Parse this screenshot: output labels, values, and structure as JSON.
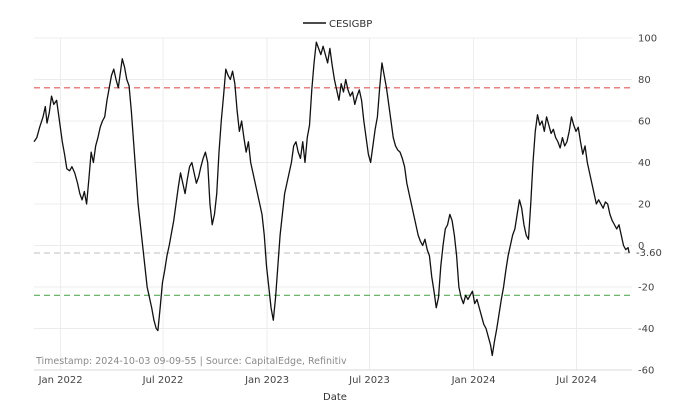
{
  "chart_data": {
    "type": "line",
    "legend": {
      "label": "CESIGBP",
      "position": "top-center"
    },
    "xlabel": "Date",
    "ylabel": "",
    "ylim": [
      -60,
      100
    ],
    "y_ticks": [
      100,
      80,
      60,
      40,
      20,
      0,
      -20,
      -40,
      -60
    ],
    "x_range": [
      "2021-11-15",
      "2024-10-07"
    ],
    "x_ticks": [
      {
        "date": "2022-01-01",
        "label": "Jan 2022"
      },
      {
        "date": "2022-07-01",
        "label": "Jul 2022"
      },
      {
        "date": "2023-01-01",
        "label": "Jan 2023"
      },
      {
        "date": "2023-07-01",
        "label": "Jul 2023"
      },
      {
        "date": "2024-01-01",
        "label": "Jan 2024"
      },
      {
        "date": "2024-07-01",
        "label": "Jul 2024"
      }
    ],
    "grid": true,
    "reference_lines": [
      {
        "value": 76,
        "color": "#e05a5a",
        "style": "dashed"
      },
      {
        "value": -24,
        "color": "#5aab5a",
        "style": "dashed"
      },
      {
        "value": -3.6,
        "color": "#cccccc",
        "style": "dashed"
      }
    ],
    "last_value_label": "-3.60",
    "series": [
      {
        "name": "CESIGBP",
        "color": "#111111",
        "points": [
          [
            "2021-11-15",
            50
          ],
          [
            "2021-11-20",
            52
          ],
          [
            "2021-11-25",
            57
          ],
          [
            "2021-12-01",
            62
          ],
          [
            "2021-12-05",
            67
          ],
          [
            "2021-12-08",
            59
          ],
          [
            "2021-12-12",
            64
          ],
          [
            "2021-12-16",
            72
          ],
          [
            "2021-12-20",
            68
          ],
          [
            "2021-12-25",
            70
          ],
          [
            "2021-12-30",
            60
          ],
          [
            "2022-01-04",
            50
          ],
          [
            "2022-01-08",
            44
          ],
          [
            "2022-01-12",
            37
          ],
          [
            "2022-01-17",
            36
          ],
          [
            "2022-01-21",
            38
          ],
          [
            "2022-01-26",
            35
          ],
          [
            "2022-01-31",
            30
          ],
          [
            "2022-02-04",
            25
          ],
          [
            "2022-02-08",
            22
          ],
          [
            "2022-02-12",
            26
          ],
          [
            "2022-02-16",
            20
          ],
          [
            "2022-02-20",
            32
          ],
          [
            "2022-02-24",
            45
          ],
          [
            "2022-02-28",
            40
          ],
          [
            "2022-03-04",
            48
          ],
          [
            "2022-03-08",
            52
          ],
          [
            "2022-03-12",
            57
          ],
          [
            "2022-03-16",
            60
          ],
          [
            "2022-03-20",
            62
          ],
          [
            "2022-03-24",
            70
          ],
          [
            "2022-03-28",
            76
          ],
          [
            "2022-04-01",
            82
          ],
          [
            "2022-04-05",
            85
          ],
          [
            "2022-04-09",
            80
          ],
          [
            "2022-04-13",
            76
          ],
          [
            "2022-04-17",
            84
          ],
          [
            "2022-04-20",
            90
          ],
          [
            "2022-04-24",
            86
          ],
          [
            "2022-04-28",
            80
          ],
          [
            "2022-05-02",
            77
          ],
          [
            "2022-05-06",
            65
          ],
          [
            "2022-05-10",
            50
          ],
          [
            "2022-05-14",
            35
          ],
          [
            "2022-05-18",
            20
          ],
          [
            "2022-05-22",
            10
          ],
          [
            "2022-05-26",
            0
          ],
          [
            "2022-05-30",
            -10
          ],
          [
            "2022-06-03",
            -20
          ],
          [
            "2022-06-07",
            -25
          ],
          [
            "2022-06-11",
            -30
          ],
          [
            "2022-06-15",
            -36
          ],
          [
            "2022-06-19",
            -40
          ],
          [
            "2022-06-22",
            -41
          ],
          [
            "2022-06-26",
            -30
          ],
          [
            "2022-06-30",
            -18
          ],
          [
            "2022-07-04",
            -12
          ],
          [
            "2022-07-08",
            -5
          ],
          [
            "2022-07-12",
            0
          ],
          [
            "2022-07-16",
            6
          ],
          [
            "2022-07-20",
            12
          ],
          [
            "2022-07-24",
            20
          ],
          [
            "2022-07-28",
            28
          ],
          [
            "2022-08-01",
            35
          ],
          [
            "2022-08-05",
            30
          ],
          [
            "2022-08-09",
            25
          ],
          [
            "2022-08-13",
            32
          ],
          [
            "2022-08-17",
            38
          ],
          [
            "2022-08-21",
            40
          ],
          [
            "2022-08-25",
            35
          ],
          [
            "2022-08-29",
            30
          ],
          [
            "2022-09-02",
            33
          ],
          [
            "2022-09-06",
            38
          ],
          [
            "2022-09-10",
            42
          ],
          [
            "2022-09-14",
            45
          ],
          [
            "2022-09-18",
            40
          ],
          [
            "2022-09-22",
            20
          ],
          [
            "2022-09-26",
            10
          ],
          [
            "2022-09-30",
            15
          ],
          [
            "2022-10-04",
            25
          ],
          [
            "2022-10-08",
            45
          ],
          [
            "2022-10-12",
            60
          ],
          [
            "2022-10-16",
            72
          ],
          [
            "2022-10-20",
            85
          ],
          [
            "2022-10-24",
            82
          ],
          [
            "2022-10-28",
            80
          ],
          [
            "2022-11-01",
            84
          ],
          [
            "2022-11-05",
            78
          ],
          [
            "2022-11-09",
            65
          ],
          [
            "2022-11-13",
            55
          ],
          [
            "2022-11-17",
            60
          ],
          [
            "2022-11-21",
            52
          ],
          [
            "2022-11-25",
            45
          ],
          [
            "2022-11-29",
            50
          ],
          [
            "2022-12-03",
            40
          ],
          [
            "2022-12-07",
            35
          ],
          [
            "2022-12-11",
            30
          ],
          [
            "2022-12-15",
            25
          ],
          [
            "2022-12-19",
            20
          ],
          [
            "2022-12-23",
            15
          ],
          [
            "2022-12-27",
            5
          ],
          [
            "2022-12-31",
            -10
          ],
          [
            "2023-01-04",
            -20
          ],
          [
            "2023-01-08",
            -30
          ],
          [
            "2023-01-12",
            -36
          ],
          [
            "2023-01-16",
            -25
          ],
          [
            "2023-01-20",
            -10
          ],
          [
            "2023-01-24",
            5
          ],
          [
            "2023-01-28",
            15
          ],
          [
            "2023-02-01",
            25
          ],
          [
            "2023-02-05",
            30
          ],
          [
            "2023-02-09",
            35
          ],
          [
            "2023-02-13",
            40
          ],
          [
            "2023-02-17",
            48
          ],
          [
            "2023-02-21",
            50
          ],
          [
            "2023-02-25",
            45
          ],
          [
            "2023-03-01",
            42
          ],
          [
            "2023-03-05",
            50
          ],
          [
            "2023-03-09",
            40
          ],
          [
            "2023-03-13",
            52
          ],
          [
            "2023-03-17",
            58
          ],
          [
            "2023-03-21",
            75
          ],
          [
            "2023-03-25",
            88
          ],
          [
            "2023-03-29",
            98
          ],
          [
            "2023-04-02",
            95
          ],
          [
            "2023-04-06",
            92
          ],
          [
            "2023-04-10",
            96
          ],
          [
            "2023-04-14",
            92
          ],
          [
            "2023-04-18",
            88
          ],
          [
            "2023-04-22",
            95
          ],
          [
            "2023-04-26",
            87
          ],
          [
            "2023-04-30",
            80
          ],
          [
            "2023-05-04",
            75
          ],
          [
            "2023-05-08",
            70
          ],
          [
            "2023-05-12",
            78
          ],
          [
            "2023-05-16",
            74
          ],
          [
            "2023-05-20",
            80
          ],
          [
            "2023-05-24",
            75
          ],
          [
            "2023-05-28",
            72
          ],
          [
            "2023-06-01",
            74
          ],
          [
            "2023-06-05",
            68
          ],
          [
            "2023-06-09",
            72
          ],
          [
            "2023-06-13",
            75
          ],
          [
            "2023-06-17",
            70
          ],
          [
            "2023-06-21",
            60
          ],
          [
            "2023-06-25",
            52
          ],
          [
            "2023-06-29",
            44
          ],
          [
            "2023-07-03",
            40
          ],
          [
            "2023-07-07",
            48
          ],
          [
            "2023-07-11",
            56
          ],
          [
            "2023-07-15",
            62
          ],
          [
            "2023-07-19",
            76
          ],
          [
            "2023-07-23",
            88
          ],
          [
            "2023-07-27",
            82
          ],
          [
            "2023-07-31",
            76
          ],
          [
            "2023-08-04",
            68
          ],
          [
            "2023-08-08",
            60
          ],
          [
            "2023-08-12",
            52
          ],
          [
            "2023-08-16",
            48
          ],
          [
            "2023-08-20",
            46
          ],
          [
            "2023-08-24",
            45
          ],
          [
            "2023-08-28",
            42
          ],
          [
            "2023-09-01",
            38
          ],
          [
            "2023-09-05",
            30
          ],
          [
            "2023-09-09",
            25
          ],
          [
            "2023-09-13",
            20
          ],
          [
            "2023-09-17",
            15
          ],
          [
            "2023-09-21",
            10
          ],
          [
            "2023-09-25",
            5
          ],
          [
            "2023-09-29",
            2
          ],
          [
            "2023-10-03",
            0
          ],
          [
            "2023-10-07",
            3
          ],
          [
            "2023-10-11",
            -2
          ],
          [
            "2023-10-15",
            -5
          ],
          [
            "2023-10-19",
            -15
          ],
          [
            "2023-10-23",
            -22
          ],
          [
            "2023-10-27",
            -30
          ],
          [
            "2023-10-31",
            -25
          ],
          [
            "2023-11-04",
            -10
          ],
          [
            "2023-11-08",
            0
          ],
          [
            "2023-11-12",
            8
          ],
          [
            "2023-11-16",
            10
          ],
          [
            "2023-11-20",
            15
          ],
          [
            "2023-11-24",
            12
          ],
          [
            "2023-11-28",
            5
          ],
          [
            "2023-12-02",
            -5
          ],
          [
            "2023-12-06",
            -20
          ],
          [
            "2023-12-10",
            -25
          ],
          [
            "2023-12-14",
            -28
          ],
          [
            "2023-12-18",
            -24
          ],
          [
            "2023-12-22",
            -26
          ],
          [
            "2023-12-26",
            -24
          ],
          [
            "2023-12-30",
            -22
          ],
          [
            "2024-01-03",
            -28
          ],
          [
            "2024-01-07",
            -26
          ],
          [
            "2024-01-11",
            -30
          ],
          [
            "2024-01-15",
            -34
          ],
          [
            "2024-01-19",
            -38
          ],
          [
            "2024-01-23",
            -40
          ],
          [
            "2024-01-27",
            -44
          ],
          [
            "2024-01-31",
            -48
          ],
          [
            "2024-02-03",
            -53
          ],
          [
            "2024-02-07",
            -46
          ],
          [
            "2024-02-11",
            -40
          ],
          [
            "2024-02-15",
            -33
          ],
          [
            "2024-02-19",
            -26
          ],
          [
            "2024-02-23",
            -20
          ],
          [
            "2024-02-27",
            -12
          ],
          [
            "2024-03-02",
            -5
          ],
          [
            "2024-03-06",
            0
          ],
          [
            "2024-03-10",
            5
          ],
          [
            "2024-03-14",
            8
          ],
          [
            "2024-03-18",
            15
          ],
          [
            "2024-03-22",
            22
          ],
          [
            "2024-03-26",
            18
          ],
          [
            "2024-03-30",
            10
          ],
          [
            "2024-04-03",
            5
          ],
          [
            "2024-04-07",
            3
          ],
          [
            "2024-04-11",
            20
          ],
          [
            "2024-04-15",
            40
          ],
          [
            "2024-04-19",
            55
          ],
          [
            "2024-04-23",
            63
          ],
          [
            "2024-04-27",
            58
          ],
          [
            "2024-05-01",
            60
          ],
          [
            "2024-05-05",
            55
          ],
          [
            "2024-05-09",
            62
          ],
          [
            "2024-05-13",
            58
          ],
          [
            "2024-05-17",
            54
          ],
          [
            "2024-05-21",
            56
          ],
          [
            "2024-05-25",
            52
          ],
          [
            "2024-05-29",
            50
          ],
          [
            "2024-06-02",
            47
          ],
          [
            "2024-06-06",
            52
          ],
          [
            "2024-06-10",
            48
          ],
          [
            "2024-06-14",
            50
          ],
          [
            "2024-06-18",
            55
          ],
          [
            "2024-06-22",
            62
          ],
          [
            "2024-06-26",
            58
          ],
          [
            "2024-06-30",
            55
          ],
          [
            "2024-07-04",
            57
          ],
          [
            "2024-07-08",
            50
          ],
          [
            "2024-07-12",
            44
          ],
          [
            "2024-07-16",
            48
          ],
          [
            "2024-07-20",
            40
          ],
          [
            "2024-07-24",
            35
          ],
          [
            "2024-07-28",
            30
          ],
          [
            "2024-08-01",
            25
          ],
          [
            "2024-08-05",
            20
          ],
          [
            "2024-08-09",
            22
          ],
          [
            "2024-08-13",
            20
          ],
          [
            "2024-08-17",
            18
          ],
          [
            "2024-08-21",
            21
          ],
          [
            "2024-08-25",
            20
          ],
          [
            "2024-08-29",
            15
          ],
          [
            "2024-09-02",
            12
          ],
          [
            "2024-09-06",
            10
          ],
          [
            "2024-09-10",
            8
          ],
          [
            "2024-09-14",
            10
          ],
          [
            "2024-09-18",
            5
          ],
          [
            "2024-09-22",
            0
          ],
          [
            "2024-09-26",
            -2
          ],
          [
            "2024-09-30",
            -1
          ],
          [
            "2024-10-02",
            -3.6
          ]
        ]
      }
    ]
  },
  "footnote": "Timestamp: 2024-10-03 09-09-55 | Source: CapitalEdge, Refinitiv"
}
